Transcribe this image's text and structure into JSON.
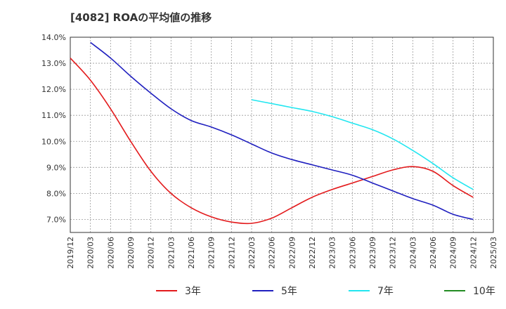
{
  "chart_data": {
    "type": "line",
    "title": "[4082]  ROAの平均値の推移",
    "xlabel": "",
    "ylabel": "",
    "x_ticks": [
      "2019/12",
      "2020/03",
      "2020/06",
      "2020/09",
      "2020/12",
      "2021/03",
      "2021/06",
      "2021/09",
      "2021/12",
      "2022/03",
      "2022/06",
      "2022/09",
      "2022/12",
      "2023/03",
      "2023/06",
      "2023/09",
      "2023/12",
      "2024/03",
      "2024/06",
      "2024/09",
      "2024/12",
      "2025/03"
    ],
    "y_ticks": [
      "7.0%",
      "8.0%",
      "9.0%",
      "10.0%",
      "11.0%",
      "12.0%",
      "13.0%",
      "14.0%"
    ],
    "ylim": [
      6.5,
      14.0
    ],
    "grid": true,
    "legend_position": "bottom",
    "series": [
      {
        "name": "3年",
        "color": "#e31a1c",
        "x": [
          "2019/12",
          "2020/03",
          "2020/06",
          "2020/09",
          "2020/12",
          "2021/03",
          "2021/06",
          "2021/09",
          "2021/12",
          "2022/03",
          "2022/06",
          "2022/09",
          "2022/12",
          "2023/03",
          "2023/06",
          "2023/09",
          "2023/12",
          "2024/03",
          "2024/06",
          "2024/09",
          "2024/12"
        ],
        "values": [
          13.2,
          12.35,
          11.25,
          10.0,
          8.85,
          8.0,
          7.45,
          7.1,
          6.9,
          6.85,
          7.05,
          7.45,
          7.85,
          8.15,
          8.4,
          8.65,
          8.9,
          9.03,
          8.85,
          8.3,
          7.85
        ]
      },
      {
        "name": "5年",
        "color": "#1f1fbf",
        "x": [
          "2020/03",
          "2020/06",
          "2020/09",
          "2020/12",
          "2021/03",
          "2021/06",
          "2021/09",
          "2021/12",
          "2022/03",
          "2022/06",
          "2022/09",
          "2022/12",
          "2023/03",
          "2023/06",
          "2023/09",
          "2023/12",
          "2024/03",
          "2024/06",
          "2024/09",
          "2024/12"
        ],
        "values": [
          13.8,
          13.2,
          12.5,
          11.85,
          11.25,
          10.8,
          10.55,
          10.25,
          9.9,
          9.55,
          9.3,
          9.1,
          8.9,
          8.7,
          8.4,
          8.1,
          7.8,
          7.55,
          7.2,
          7.0
        ]
      },
      {
        "name": "7年",
        "color": "#22e6f0",
        "x": [
          "2022/03",
          "2022/06",
          "2022/09",
          "2022/12",
          "2023/03",
          "2023/06",
          "2023/09",
          "2023/12",
          "2024/03",
          "2024/06",
          "2024/09",
          "2024/12"
        ],
        "values": [
          11.6,
          11.45,
          11.3,
          11.15,
          10.95,
          10.7,
          10.45,
          10.1,
          9.65,
          9.15,
          8.6,
          8.15
        ]
      },
      {
        "name": "10年",
        "color": "#228b22",
        "x": [],
        "values": []
      }
    ]
  }
}
